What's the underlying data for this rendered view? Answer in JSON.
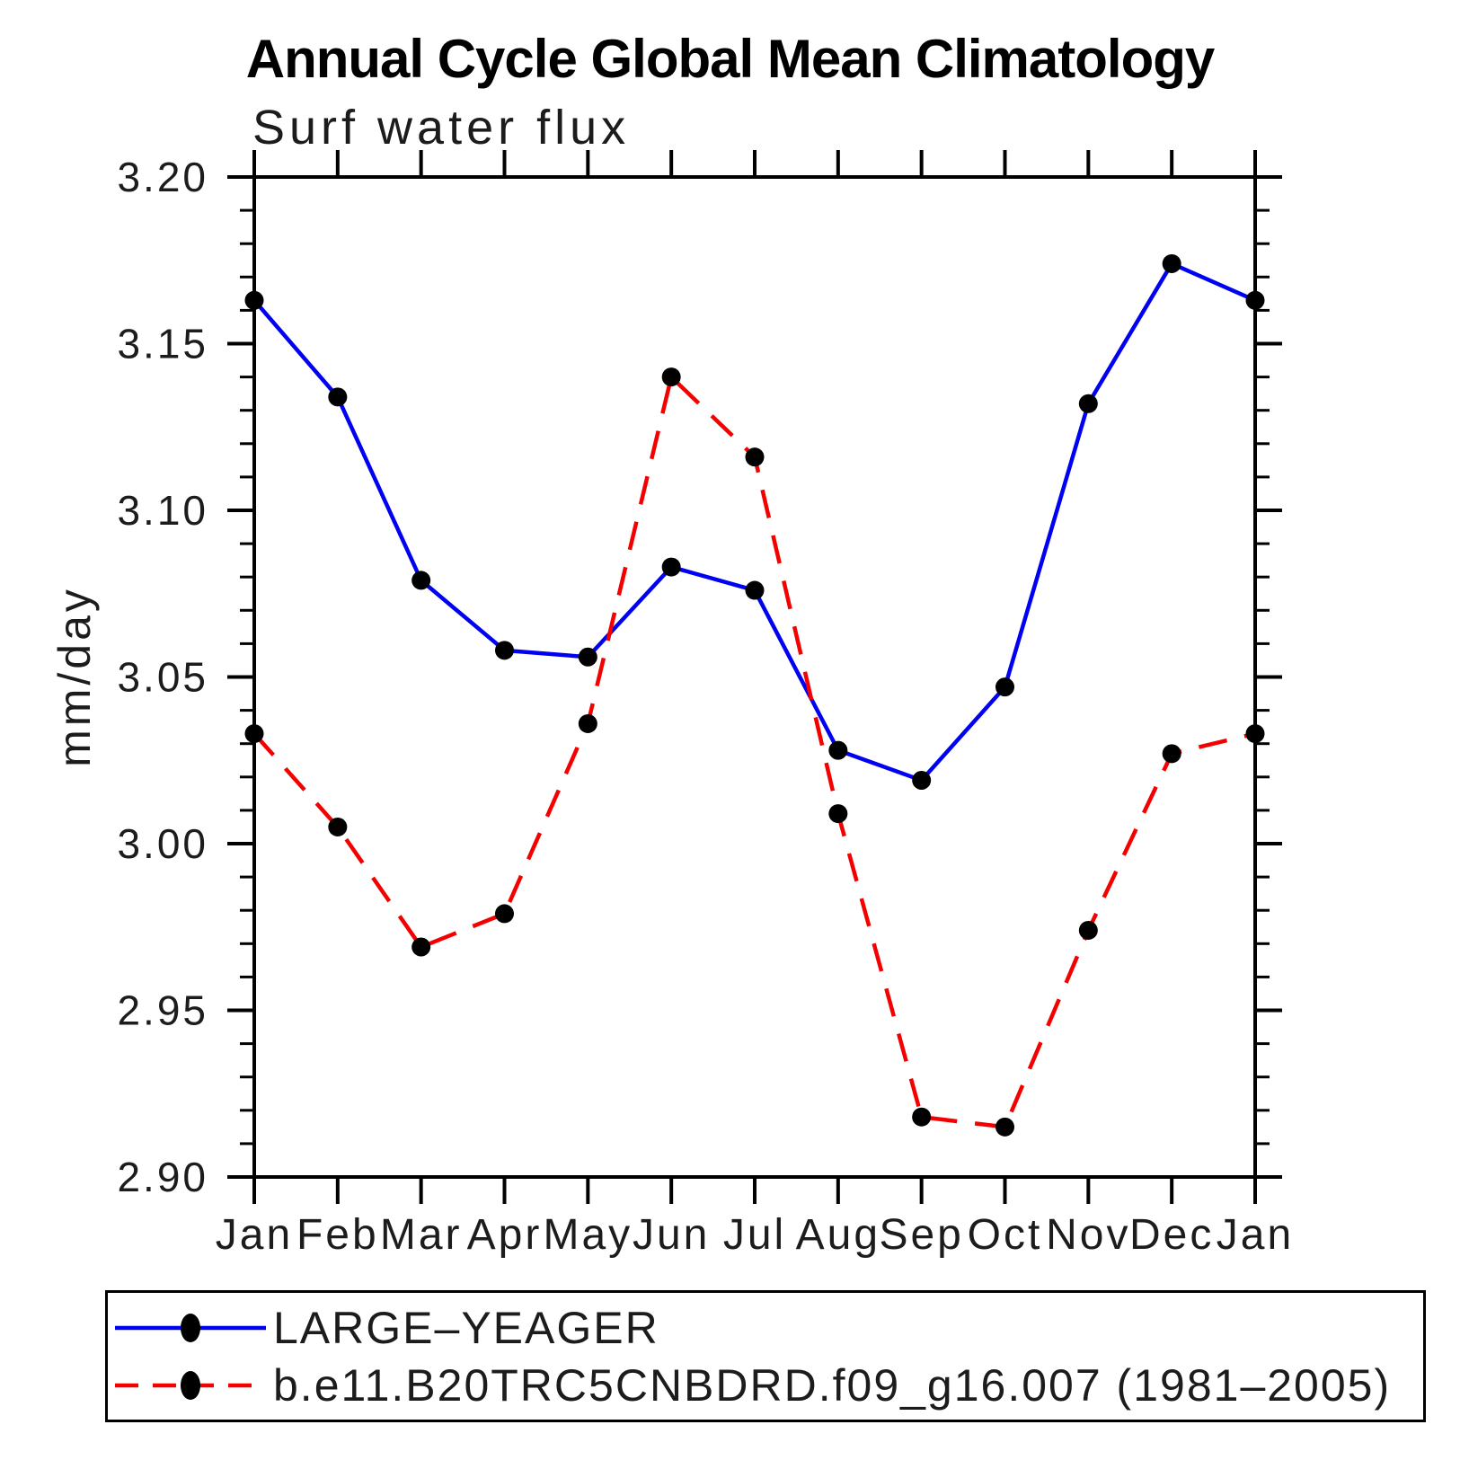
{
  "title": "Annual Cycle Global Mean Climatology",
  "subtitle": "Surf water flux",
  "ylabel": "mm/day",
  "axes": {
    "ylim": [
      2.9,
      3.2
    ],
    "y_major_ticks": [
      2.9,
      2.95,
      3.0,
      3.05,
      3.1,
      3.15,
      3.2
    ],
    "y_tick_labels": [
      "2.90",
      "2.95",
      "3.00",
      "3.05",
      "3.10",
      "3.15",
      "3.20"
    ],
    "y_minor_step": 0.01,
    "axis_color": "#000000"
  },
  "chart_data": {
    "type": "line",
    "title": "Annual Cycle Global Mean Climatology",
    "subtitle": "Surf water flux",
    "xlabel": "",
    "ylabel": "mm/day",
    "ylim": [
      2.9,
      3.2
    ],
    "grid": false,
    "legend_position": "bottom",
    "categories": [
      "Jan",
      "Feb",
      "Mar",
      "Apr",
      "May",
      "Jun",
      "Jul",
      "Aug",
      "Sep",
      "Oct",
      "Nov",
      "Dec",
      "Jan"
    ],
    "series": [
      {
        "name": "LARGE–YEAGER",
        "color": "#0000f2",
        "line_style": "solid",
        "marker": "circle",
        "marker_color": "#000000",
        "values": [
          3.163,
          3.134,
          3.079,
          3.058,
          3.056,
          3.083,
          3.076,
          3.028,
          3.019,
          3.047,
          3.132,
          3.174,
          3.163
        ]
      },
      {
        "name": "b.e11.B20TRC5CNBDRD.f09_g16.007 (1981–2005)",
        "color": "#f40000",
        "line_style": "dashed",
        "marker": "circle",
        "marker_color": "#000000",
        "values": [
          3.033,
          3.005,
          2.969,
          2.979,
          3.036,
          3.14,
          3.116,
          3.009,
          2.918,
          2.915,
          2.974,
          3.027,
          3.033
        ]
      }
    ]
  },
  "legend": {
    "entries": [
      {
        "label": "LARGE–YEAGER"
      },
      {
        "label": "b.e11.B20TRC5CNBDRD.f09_g16.007 (1981–2005)"
      }
    ]
  }
}
